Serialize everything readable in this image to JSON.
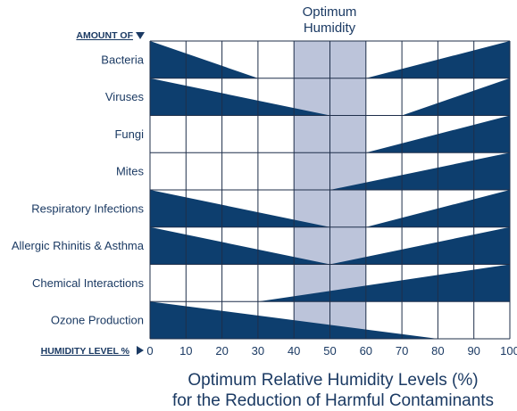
{
  "chart_data": {
    "type": "area",
    "y_axis_caption": "AMOUNT OF",
    "x_axis_caption": "HUMIDITY LEVEL %",
    "x_ticks": [
      0,
      10,
      20,
      30,
      40,
      50,
      60,
      70,
      80,
      90,
      100
    ],
    "xlim": [
      0,
      100
    ],
    "optimum_zone": {
      "label_line1": "Optimum",
      "label_line2": "Humidity",
      "from": 40,
      "to": 60
    },
    "title_line1": "Optimum Relative Humidity Levels (%)",
    "title_line2": "for the Reduction of Harmful Contaminants",
    "colors": {
      "wedge": "#0d3e6e",
      "optimum_band": "#bcc4da",
      "grid": "#1f2f4a",
      "text": "#1b3a63"
    },
    "rows": [
      {
        "label": "Bacteria",
        "left_end": 30,
        "right_start": 60
      },
      {
        "label": "Viruses",
        "left_end": 50,
        "right_start": 70
      },
      {
        "label": "Fungi",
        "left_end": null,
        "right_start": 60
      },
      {
        "label": "Mites",
        "left_end": null,
        "right_start": 50
      },
      {
        "label": "Respiratory Infections",
        "left_end": 50,
        "right_start": 60
      },
      {
        "label": "Allergic Rhinitis & Asthma",
        "left_end": 50,
        "right_start": 50
      },
      {
        "label": "Chemical Interactions",
        "left_end": null,
        "right_start": 30
      },
      {
        "label": "Ozone Production",
        "left_end": 80,
        "right_start": null
      }
    ]
  }
}
